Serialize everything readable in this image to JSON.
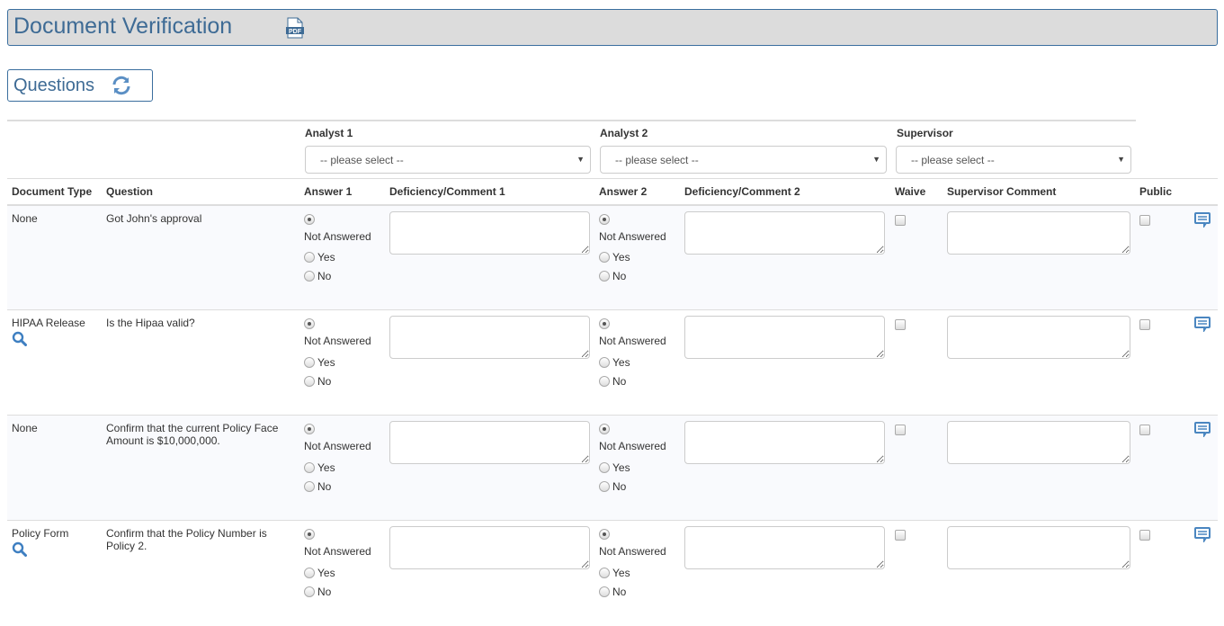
{
  "header": {
    "title": "Document Verification",
    "pdf_icon": "pdf-icon"
  },
  "section": {
    "title": "Questions",
    "refresh_icon": "refresh-icon"
  },
  "groups": {
    "analyst1": "Analyst 1",
    "analyst2": "Analyst 2",
    "supervisor": "Supervisor"
  },
  "selects": {
    "analyst1": "-- please select --",
    "analyst2": "-- please select --",
    "supervisor": "-- please select --"
  },
  "columns": [
    "Document Type",
    "Question",
    "Answer 1",
    "Deficiency/Comment 1",
    "Answer 2",
    "Deficiency/Comment 2",
    "Waive",
    "Supervisor Comment",
    "Public",
    ""
  ],
  "answer_options": [
    "Not Answered",
    "Yes",
    "No"
  ],
  "accent": "#3e6b95",
  "rows": [
    {
      "doc_type": "None",
      "has_search": false,
      "question": "Got John's approval",
      "answer1": "Not Answered",
      "answer2": "Not Answered",
      "waive": false,
      "public": false
    },
    {
      "doc_type": "HIPAA Release",
      "has_search": true,
      "question": "Is the Hipaa valid?",
      "answer1": "Not Answered",
      "answer2": "Not Answered",
      "waive": false,
      "public": false
    },
    {
      "doc_type": "None",
      "has_search": false,
      "question": "Confirm that the current Policy Face Amount is $10,000,000.",
      "answer1": "Not Answered",
      "answer2": "Not Answered",
      "waive": false,
      "public": false
    },
    {
      "doc_type": "Policy Form",
      "has_search": true,
      "question": "Confirm that the Policy Number is Policy 2.",
      "answer1": "Not Answered",
      "answer2": "Not Answered",
      "waive": false,
      "public": false
    }
  ]
}
